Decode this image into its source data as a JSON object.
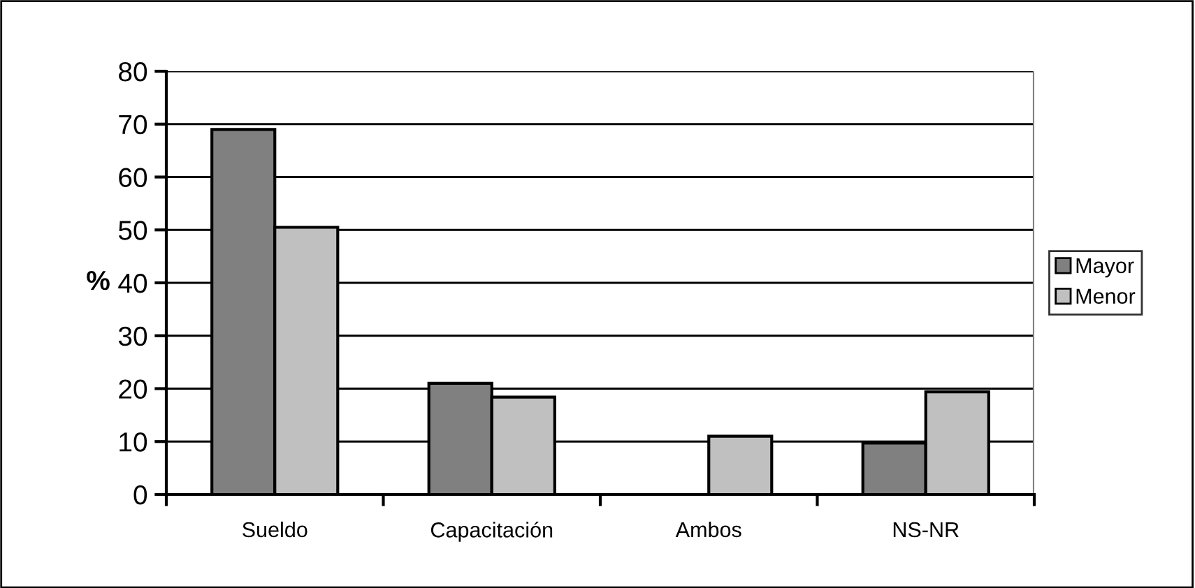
{
  "chart_data": {
    "type": "bar",
    "ylabel": "%",
    "categories": [
      "Sueldo",
      "Capacitación",
      "Ambos",
      "NS-NR"
    ],
    "series": [
      {
        "name": "Mayor",
        "color": "#808080",
        "values": [
          69,
          21,
          0,
          9.7
        ]
      },
      {
        "name": "Menor",
        "color": "#c0c0c0",
        "values": [
          50.5,
          18.4,
          11,
          19.4
        ]
      }
    ],
    "ylim": [
      0,
      80
    ],
    "yticks": [
      0,
      10,
      20,
      30,
      40,
      50,
      60,
      70,
      80
    ],
    "grid": "y",
    "legend": "right"
  }
}
